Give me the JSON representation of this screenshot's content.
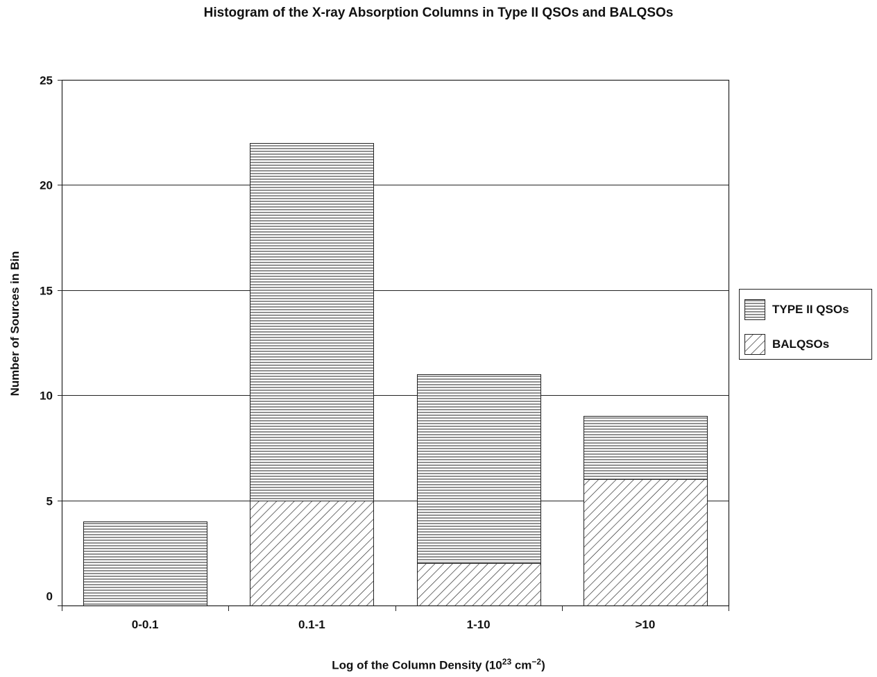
{
  "chart_data": {
    "type": "bar",
    "stacked": true,
    "title": "Histogram of the X-ray Absorption Columns in Type II QSOs and BALQSOs",
    "xlabel": "Log of the Column Density (10",
    "xlabel_sup1": "23",
    "xlabel_unit": " cm",
    "xlabel_sup2": "−2",
    "xlabel_close": ")",
    "ylabel": "Number of Sources in Bin",
    "categories": [
      "0-0.1",
      "0.1-1",
      "1-10",
      ">10"
    ],
    "ylim": [
      0,
      25
    ],
    "yticks": [
      "0",
      "5",
      "10",
      "15",
      "20",
      "25"
    ],
    "grid": true,
    "legend_position": "right",
    "series": [
      {
        "name": "BALQSOs",
        "values": [
          0,
          5,
          2,
          6
        ],
        "pattern": "diagonal-hatch"
      },
      {
        "name": "TYPE II QSOs",
        "values": [
          4,
          17,
          9,
          3
        ],
        "pattern": "horizontal-lines"
      }
    ],
    "legend": [
      "TYPE II QSOs",
      "BALQSOs"
    ]
  }
}
